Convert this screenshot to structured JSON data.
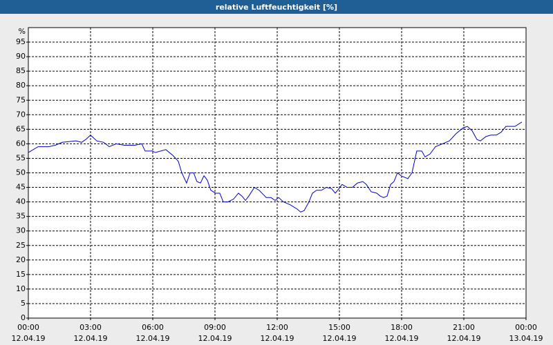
{
  "chart_data": {
    "type": "line",
    "title": "relative Luftfeuchtigkeit [%]",
    "y_label": "%",
    "x": [
      0,
      0.47,
      0.97,
      1.3,
      1.63,
      2.3,
      2.57,
      2.77,
      3,
      3.3,
      3.63,
      3.9,
      4.23,
      4.63,
      5.13,
      5.47,
      5.63,
      5.97,
      6.13,
      6.63,
      6.97,
      7.23,
      7.4,
      7.63,
      7.8,
      7.97,
      8.13,
      8.3,
      8.47,
      8.63,
      8.8,
      9.03,
      9.23,
      9.4,
      9.63,
      9.9,
      10.13,
      10.3,
      10.47,
      10.63,
      10.9,
      11.13,
      11.47,
      11.7,
      11.9,
      12.07,
      12.3,
      12.63,
      12.97,
      13.13,
      13.3,
      13.53,
      13.7,
      13.9,
      14.13,
      14.37,
      14.63,
      14.8,
      14.97,
      15.13,
      15.37,
      15.63,
      15.87,
      16.13,
      16.3,
      16.53,
      16.8,
      16.97,
      17.13,
      17.3,
      17.47,
      17.63,
      17.8,
      17.97,
      18.3,
      18.5,
      18.73,
      18.97,
      19.13,
      19.37,
      19.63,
      19.97,
      20.3,
      20.63,
      20.97,
      21.17,
      21.4,
      21.63,
      21.8,
      22.07,
      22.3,
      22.57,
      22.8,
      23.03,
      23.47,
      23.8
    ],
    "series": [
      {
        "name": "relative Luftfeuchtigkeit",
        "color": "#0000cc",
        "values": [
          57,
          59,
          59,
          59.5,
          60.5,
          61,
          60.5,
          61.5,
          63,
          61,
          60.5,
          59,
          60,
          59.5,
          59.5,
          60,
          57.5,
          57.5,
          57,
          58,
          56,
          54,
          50,
          46.5,
          50,
          50,
          47,
          46.5,
          49,
          47.5,
          44,
          43,
          43,
          40,
          40,
          41,
          43,
          42,
          40.5,
          42,
          45,
          44,
          41.5,
          41.5,
          40.5,
          41.5,
          40,
          39,
          37.5,
          36.5,
          37,
          40,
          43,
          44,
          44,
          45,
          44.5,
          43,
          44.5,
          46,
          45,
          45,
          46.5,
          47,
          46,
          43.5,
          43,
          42,
          41.5,
          42,
          46,
          47,
          50,
          49,
          48,
          50,
          57.5,
          57.5,
          55.5,
          56.5,
          59,
          60,
          61,
          63.5,
          65.5,
          66,
          64.5,
          61.5,
          61,
          62.5,
          63,
          63,
          64,
          66,
          66,
          67.5
        ]
      }
    ],
    "xlim": [
      0,
      24
    ],
    "xticks": [
      {
        "value": 0,
        "label": "00:00",
        "date": "12.04.19"
      },
      {
        "value": 3,
        "label": "03:00",
        "date": "12.04.19"
      },
      {
        "value": 6,
        "label": "06:00",
        "date": "12.04.19"
      },
      {
        "value": 9,
        "label": "09:00",
        "date": "12.04.19"
      },
      {
        "value": 12,
        "label": "12:00",
        "date": "12.04.19"
      },
      {
        "value": 15,
        "label": "15:00",
        "date": "12.04.19"
      },
      {
        "value": 18,
        "label": "18:00",
        "date": "12.04.19"
      },
      {
        "value": 21,
        "label": "21:00",
        "date": "12.04.19"
      },
      {
        "value": 24,
        "label": "00:00",
        "date": "13.04.19"
      }
    ],
    "ylim": [
      0,
      100
    ],
    "yticks": [
      0,
      5,
      10,
      15,
      20,
      25,
      30,
      35,
      40,
      45,
      50,
      55,
      60,
      65,
      70,
      75,
      80,
      85,
      90,
      95
    ],
    "grid": true
  }
}
